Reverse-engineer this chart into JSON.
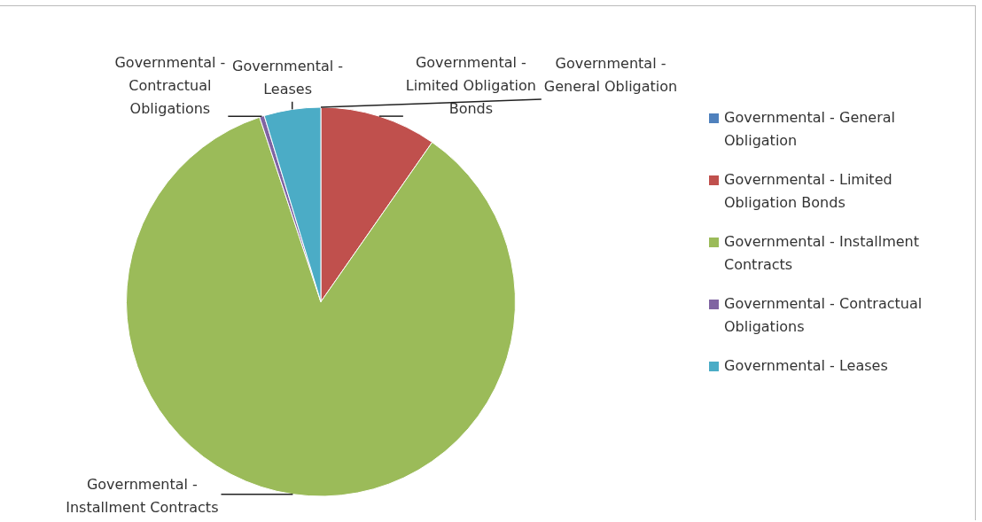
{
  "chart_data": {
    "type": "pie",
    "categories": [
      "Governmental - General Obligation",
      "Governmental - Limited Obligation Bonds",
      "Governmental - Installment Contracts",
      "Governmental - Contractual Obligations",
      "Governmental - Leases"
    ],
    "values": [
      0,
      9.7,
      85.2,
      0.4,
      4.7
    ],
    "colors": [
      "#4f81bd",
      "#c0504d",
      "#9bbb59",
      "#8064a2",
      "#4bacc6"
    ],
    "legend": "right"
  }
}
